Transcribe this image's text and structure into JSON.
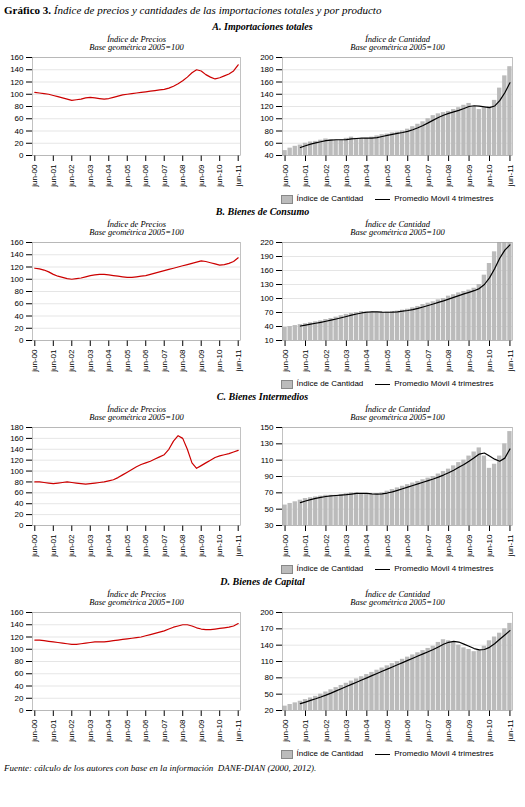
{
  "title": "Gráfico 3. Índice de precios y cantidades de las importaciones totales y por producto",
  "annotations": [
    "Fuente: cálculo de los autores con base en la información  DANE-DIAN (2000, 2012)."
  ],
  "chart_data": [
    {
      "type": "line",
      "subtitle": "A. Importaciones totales",
      "annotations": [
        "Índice de Precios\nBase geométrica 2005=100"
      ],
      "categories": [
        "jun-00",
        null,
        null,
        null,
        "jun-01",
        null,
        null,
        null,
        "jun-02",
        null,
        null,
        null,
        "jun-03",
        null,
        null,
        null,
        "jun-04",
        null,
        null,
        null,
        "jun-05",
        null,
        null,
        null,
        "jun-06",
        null,
        null,
        null,
        "jun-07",
        null,
        null,
        null,
        "jun-08",
        null,
        null,
        null,
        "jun-09",
        null,
        null,
        null,
        "jun-10",
        null,
        null,
        null,
        "jun-11"
      ],
      "values": [
        103,
        102,
        101,
        100,
        98,
        96,
        94,
        92,
        90,
        91,
        92,
        94,
        95,
        94,
        93,
        92,
        93,
        95,
        97,
        99,
        100,
        101,
        102,
        103,
        104,
        105,
        106,
        107,
        108,
        110,
        113,
        117,
        122,
        128,
        135,
        140,
        138,
        132,
        128,
        125,
        127,
        130,
        133,
        138,
        148
      ],
      "color": "#cc0000",
      "ylim": [
        0,
        160
      ],
      "yticks": [
        0,
        20,
        40,
        60,
        80,
        100,
        120,
        140,
        160
      ],
      "grid": true
    },
    {
      "type": "bar",
      "subtitle": "A. Importaciones totales",
      "annotations": [
        "Índice de Cantidad\nBase geométrica 2005=100"
      ],
      "categories": [
        "jun-00",
        null,
        null,
        null,
        "jun-01",
        null,
        null,
        null,
        "jun-02",
        null,
        null,
        null,
        "jun-03",
        null,
        null,
        null,
        "jun-04",
        null,
        null,
        null,
        "jun-05",
        null,
        null,
        null,
        "jun-06",
        null,
        null,
        null,
        "jun-07",
        null,
        null,
        null,
        "jun-08",
        null,
        null,
        null,
        "jun-09",
        null,
        null,
        null,
        "jun-10",
        null,
        null,
        null,
        "jun-11"
      ],
      "series": [
        {
          "name": "Índice de Cantidad",
          "type": "bar",
          "color": "#bbbbbb",
          "values": [
            48,
            52,
            55,
            57,
            60,
            62,
            63,
            65,
            67,
            66,
            65,
            65,
            68,
            70,
            68,
            67,
            68,
            70,
            72,
            74,
            75,
            77,
            78,
            80,
            83,
            87,
            91,
            95,
            100,
            105,
            108,
            110,
            112,
            115,
            118,
            122,
            125,
            120,
            115,
            118,
            120,
            130,
            150,
            170,
            185
          ]
        },
        {
          "name": "Promedio Móvil 4 trimestres",
          "type": "line",
          "color": "#000000",
          "values": [
            null,
            null,
            null,
            53,
            56,
            58.5,
            60.5,
            62.5,
            64.25,
            65.25,
            65.75,
            65.75,
            66,
            67,
            67.75,
            68.25,
            68.25,
            68.25,
            69.25,
            71,
            72.75,
            74.5,
            76,
            77.5,
            79.5,
            82,
            85.25,
            89,
            93.25,
            97.75,
            102,
            105.75,
            108.75,
            111.25,
            113.75,
            116.75,
            120,
            121.25,
            120.5,
            119.5,
            118.25,
            120.75,
            129.5,
            142.5,
            158.75
          ]
        }
      ],
      "ylim": [
        40,
        200
      ],
      "yticks": [
        40,
        60,
        80,
        100,
        120,
        140,
        160,
        180,
        200
      ],
      "grid": true,
      "legend": "bottom"
    },
    {
      "type": "line",
      "subtitle": "B. Bienes de Consumo",
      "annotations": [
        "Índice de Precios\nBase geométrica 2005=100"
      ],
      "categories": [
        "jun-00",
        null,
        null,
        null,
        "jun-01",
        null,
        null,
        null,
        "jun-02",
        null,
        null,
        null,
        "jun-03",
        null,
        null,
        null,
        "jun-04",
        null,
        null,
        null,
        "jun-05",
        null,
        null,
        null,
        "jun-06",
        null,
        null,
        null,
        "jun-07",
        null,
        null,
        null,
        "jun-08",
        null,
        null,
        null,
        "jun-09",
        null,
        null,
        null,
        "jun-10",
        null,
        null,
        null,
        "jun-11"
      ],
      "values": [
        118,
        117,
        115,
        112,
        108,
        105,
        103,
        101,
        100,
        101,
        102,
        104,
        106,
        107,
        108,
        108,
        107,
        106,
        105,
        104,
        103,
        103,
        104,
        105,
        106,
        108,
        110,
        112,
        114,
        116,
        118,
        120,
        122,
        124,
        126,
        128,
        130,
        129,
        127,
        125,
        123,
        124,
        126,
        129,
        135
      ],
      "color": "#cc0000",
      "ylim": [
        0,
        160
      ],
      "yticks": [
        0,
        20,
        40,
        60,
        80,
        100,
        120,
        140,
        160
      ],
      "grid": true
    },
    {
      "type": "bar",
      "subtitle": "B. Bienes de Consumo",
      "annotations": [
        "Índice de Cantidad\nBase geométrica 2005=100"
      ],
      "categories": [
        "jun-00",
        null,
        null,
        null,
        "jun-01",
        null,
        null,
        null,
        "jun-02",
        null,
        null,
        null,
        "jun-03",
        null,
        null,
        null,
        "jun-04",
        null,
        null,
        null,
        "jun-05",
        null,
        null,
        null,
        "jun-06",
        null,
        null,
        null,
        "jun-07",
        null,
        null,
        null,
        "jun-08",
        null,
        null,
        null,
        "jun-09",
        null,
        null,
        null,
        "jun-10",
        null,
        null,
        null,
        "jun-11"
      ],
      "series": [
        {
          "name": "Índice de Cantidad",
          "type": "bar",
          "color": "#bbbbbb",
          "values": [
            38,
            40,
            42,
            44,
            46,
            48,
            50,
            52,
            55,
            57,
            60,
            63,
            66,
            68,
            70,
            72,
            72,
            71,
            70,
            70,
            71,
            72,
            73,
            75,
            77,
            80,
            83,
            87,
            90,
            93,
            97,
            100,
            105,
            108,
            112,
            115,
            118,
            122,
            130,
            150,
            175,
            200,
            220,
            220,
            220
          ]
        },
        {
          "name": "Promedio Móvil 4 trimestres",
          "type": "line",
          "color": "#000000",
          "values": [
            null,
            null,
            null,
            41,
            43,
            45,
            47,
            49,
            51.25,
            53.5,
            56,
            58.75,
            61.5,
            64.25,
            66.75,
            69,
            70.5,
            71.25,
            71.25,
            70.75,
            70.5,
            70.75,
            71.5,
            72.75,
            74.25,
            76.25,
            78.75,
            81.75,
            85,
            88.25,
            91.75,
            95,
            98.75,
            102.5,
            106.25,
            110,
            113.25,
            116.75,
            121.25,
            130,
            144.25,
            163.75,
            186.25,
            203.75,
            215
          ]
        }
      ],
      "ylim": [
        10,
        220
      ],
      "yticks": [
        10,
        40,
        70,
        100,
        130,
        160,
        190,
        220
      ],
      "grid": true,
      "legend": "bottom"
    },
    {
      "type": "line",
      "subtitle": "C. Bienes Intermedios",
      "annotations": [
        "Índice de Precios\nBase geométrica 2005=100"
      ],
      "categories": [
        "jun-00",
        null,
        null,
        null,
        "jun-01",
        null,
        null,
        null,
        "jun-02",
        null,
        null,
        null,
        "jun-03",
        null,
        null,
        null,
        "jun-04",
        null,
        null,
        null,
        "jun-05",
        null,
        null,
        null,
        "jun-06",
        null,
        null,
        null,
        "jun-07",
        null,
        null,
        null,
        "jun-08",
        null,
        null,
        null,
        "jun-09",
        null,
        null,
        null,
        "jun-10",
        null,
        null,
        null,
        "jun-11"
      ],
      "values": [
        80,
        80,
        79,
        78,
        77,
        78,
        79,
        80,
        79,
        78,
        77,
        76,
        77,
        78,
        79,
        80,
        82,
        84,
        88,
        93,
        98,
        103,
        108,
        112,
        115,
        118,
        122,
        126,
        130,
        140,
        155,
        165,
        160,
        140,
        115,
        105,
        110,
        115,
        120,
        125,
        128,
        130,
        132,
        135,
        138
      ],
      "color": "#cc0000",
      "ylim": [
        0,
        180
      ],
      "yticks": [
        0,
        20,
        40,
        60,
        80,
        100,
        120,
        140,
        160,
        180
      ],
      "grid": true
    },
    {
      "type": "bar",
      "subtitle": "C. Bienes Intermedios",
      "annotations": [
        "Índice de Cantidad\nBase geométrica 2005=100"
      ],
      "categories": [
        "jun-00",
        null,
        null,
        null,
        "jun-01",
        null,
        null,
        null,
        "jun-02",
        null,
        null,
        null,
        "jun-03",
        null,
        null,
        null,
        "jun-04",
        null,
        null,
        null,
        "jun-05",
        null,
        null,
        null,
        "jun-06",
        null,
        null,
        null,
        "jun-07",
        null,
        null,
        null,
        "jun-08",
        null,
        null,
        null,
        "jun-09",
        null,
        null,
        null,
        "jun-10",
        null,
        null,
        null,
        "jun-11"
      ],
      "series": [
        {
          "name": "Índice de Cantidad",
          "type": "bar",
          "color": "#bbbbbb",
          "values": [
            55,
            57,
            59,
            61,
            63,
            64,
            65,
            66,
            67,
            67,
            67,
            68,
            69,
            70,
            70,
            69,
            68,
            68,
            69,
            70,
            72,
            74,
            76,
            78,
            80,
            82,
            84,
            86,
            88,
            90,
            93,
            96,
            99,
            103,
            107,
            110,
            115,
            120,
            125,
            115,
            100,
            105,
            115,
            130,
            145
          ]
        },
        {
          "name": "Promedio Móvil 4 trimestres",
          "type": "line",
          "color": "#000000",
          "values": [
            null,
            null,
            null,
            58,
            60,
            61.75,
            63.25,
            64.5,
            65.5,
            66.25,
            66.75,
            67.25,
            67.75,
            68.5,
            69.25,
            69.5,
            69.25,
            68.75,
            68.5,
            68.75,
            69.75,
            71.25,
            73,
            75,
            77,
            79,
            81,
            83,
            85,
            87,
            89.25,
            91.75,
            94.5,
            97.75,
            101.25,
            104.75,
            108.75,
            113,
            117.5,
            118.75,
            115,
            111.25,
            108.75,
            112.5,
            123.75
          ]
        }
      ],
      "ylim": [
        30,
        150
      ],
      "yticks": [
        30,
        50,
        70,
        90,
        110,
        130,
        150
      ],
      "grid": true,
      "legend": "bottom"
    },
    {
      "type": "line",
      "subtitle": "D. Bienes de Capital",
      "annotations": [
        "Índice de Precios\nBase geométrica 2005=100"
      ],
      "categories": [
        "jun-00",
        null,
        null,
        null,
        "jun-01",
        null,
        null,
        null,
        "jun-02",
        null,
        null,
        null,
        "jun-03",
        null,
        null,
        null,
        "jun-04",
        null,
        null,
        null,
        "jun-05",
        null,
        null,
        null,
        "jun-06",
        null,
        null,
        null,
        "jun-07",
        null,
        null,
        null,
        "jun-08",
        null,
        null,
        null,
        "jun-09",
        null,
        null,
        null,
        "jun-10",
        null,
        null,
        null,
        "jun-11"
      ],
      "values": [
        115,
        115,
        114,
        113,
        112,
        111,
        110,
        109,
        108,
        108,
        109,
        110,
        111,
        112,
        112,
        112,
        113,
        114,
        115,
        116,
        117,
        118,
        119,
        120,
        122,
        124,
        126,
        128,
        130,
        133,
        136,
        138,
        140,
        140,
        138,
        135,
        133,
        132,
        132,
        133,
        134,
        135,
        136,
        138,
        142
      ],
      "color": "#cc0000",
      "ylim": [
        0,
        160
      ],
      "yticks": [
        0,
        20,
        40,
        60,
        80,
        100,
        120,
        140,
        160
      ],
      "grid": true
    },
    {
      "type": "bar",
      "subtitle": "D. Bienes de Capital",
      "annotations": [
        "Índice de Cantidad\nBase geométrica 2005=100"
      ],
      "categories": [
        "jun-00",
        null,
        null,
        null,
        "jun-01",
        null,
        null,
        null,
        "jun-02",
        null,
        null,
        null,
        "jun-03",
        null,
        null,
        null,
        "jun-04",
        null,
        null,
        null,
        "jun-05",
        null,
        null,
        null,
        "jun-06",
        null,
        null,
        null,
        "jun-07",
        null,
        null,
        null,
        "jun-08",
        null,
        null,
        null,
        "jun-09",
        null,
        null,
        null,
        "jun-10",
        null,
        null,
        null,
        "jun-11"
      ],
      "series": [
        {
          "name": "Índice de Cantidad",
          "type": "bar",
          "color": "#bbbbbb",
          "values": [
            28,
            31,
            34,
            37,
            40,
            43,
            46,
            50,
            54,
            58,
            62,
            66,
            70,
            74,
            78,
            82,
            86,
            90,
            94,
            98,
            102,
            106,
            110,
            114,
            118,
            122,
            126,
            130,
            134,
            138,
            145,
            150,
            148,
            145,
            140,
            135,
            132,
            128,
            130,
            138,
            148,
            155,
            162,
            170,
            180
          ]
        },
        {
          "name": "Promedio Móvil 4 trimestres",
          "type": "line",
          "color": "#000000",
          "values": [
            null,
            null,
            null,
            32.5,
            35.5,
            38.5,
            41.5,
            44.75,
            48.25,
            52,
            56,
            60,
            64,
            68,
            72,
            76,
            80,
            84,
            88,
            92,
            96,
            100,
            104,
            108,
            112,
            116,
            120,
            124,
            128,
            132,
            136.75,
            141.75,
            145.25,
            147,
            145.75,
            142,
            138,
            133.75,
            131.25,
            132,
            136,
            142.75,
            150.75,
            158.75,
            166.75
          ]
        }
      ],
      "ylim": [
        20,
        200
      ],
      "yticks": [
        20,
        50,
        80,
        110,
        140,
        170,
        200
      ],
      "grid": true,
      "legend": "bottom"
    }
  ]
}
